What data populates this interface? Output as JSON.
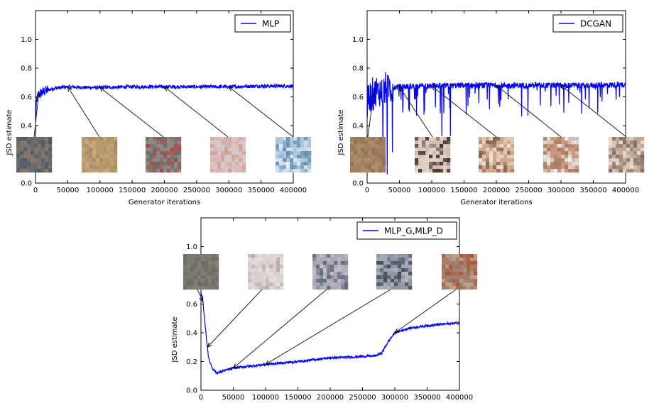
{
  "chart_data": [
    {
      "id": "mlp",
      "type": "line",
      "legend": "MLP",
      "legend_position": "top-right",
      "xlabel": "Generator iterations",
      "ylabel": "JSD estimate",
      "xlim": [
        0,
        400000
      ],
      "ylim": [
        0.0,
        1.2
      ],
      "xticks": [
        0,
        50000,
        100000,
        150000,
        200000,
        250000,
        300000,
        350000,
        400000
      ],
      "yticks": [
        0.0,
        0.2,
        0.4,
        0.6,
        0.8,
        1.0
      ],
      "xtick_labels": [
        "0",
        "50000",
        "100000",
        "150000",
        "200000",
        "250000",
        "300000",
        "350000",
        "400000"
      ],
      "ytick_labels": [
        "0.0",
        "0.2",
        "0.4",
        "0.6",
        "0.8",
        "1.0"
      ],
      "color": "#0000ff",
      "noise": 0.012,
      "spikes": false,
      "series": [
        {
          "name": "MLP",
          "x": [
            0,
            2000,
            5000,
            10000,
            20000,
            30000,
            50000,
            80000,
            100000,
            150000,
            200000,
            250000,
            300000,
            350000,
            400000
          ],
          "y": [
            0.45,
            0.58,
            0.62,
            0.63,
            0.65,
            0.66,
            0.67,
            0.665,
            0.665,
            0.67,
            0.67,
            0.67,
            0.67,
            0.675,
            0.675
          ]
        }
      ],
      "thumbnails": [
        {
          "at_x": 5000,
          "tone": [
            "#6a6a6a",
            "#8a7a6a",
            "#4a5a6a"
          ]
        },
        {
          "at_x": 50000,
          "tone": [
            "#b89a70",
            "#a88a60",
            "#c8aa80"
          ]
        },
        {
          "at_x": 100000,
          "tone": [
            "#8a8a8a",
            "#b04040",
            "#6a6a5a"
          ]
        },
        {
          "at_x": 200000,
          "tone": [
            "#d8c8c8",
            "#e0b0c0",
            "#c8a088"
          ]
        },
        {
          "at_x": 300000,
          "tone": [
            "#a8c8e0",
            "#e8f0f8",
            "#6888a8"
          ]
        }
      ]
    },
    {
      "id": "dcgan",
      "type": "line",
      "legend": "DCGAN",
      "legend_position": "top-right",
      "xlabel": "Generator iterations",
      "ylabel": "JSD estimate",
      "xlim": [
        0,
        400000
      ],
      "ylim": [
        0.0,
        1.2
      ],
      "xticks": [
        0,
        50000,
        100000,
        150000,
        200000,
        250000,
        300000,
        350000,
        400000
      ],
      "yticks": [
        0.0,
        0.2,
        0.4,
        0.6,
        0.8,
        1.0
      ],
      "xtick_labels": [
        "0",
        "50000",
        "100000",
        "150000",
        "200000",
        "250000",
        "300000",
        "350000",
        "400000"
      ],
      "ytick_labels": [
        "0.0",
        "0.2",
        "0.4",
        "0.6",
        "0.8",
        "1.0"
      ],
      "color": "#0000ff",
      "noise": 0.02,
      "spikes": true,
      "series": [
        {
          "name": "DCGAN",
          "x": [
            0,
            5000,
            10000,
            20000,
            30000,
            50000,
            80000,
            100000,
            150000,
            200000,
            250000,
            300000,
            350000,
            400000
          ],
          "y": [
            0.55,
            0.6,
            0.62,
            0.64,
            0.66,
            0.67,
            0.675,
            0.675,
            0.68,
            0.68,
            0.68,
            0.68,
            0.68,
            0.685
          ]
        }
      ],
      "thumbnails": [
        {
          "at_x": 10000,
          "tone": [
            "#a08060",
            "#907050",
            "#b09070"
          ]
        },
        {
          "at_x": 50000,
          "tone": [
            "#e0d0c8",
            "#402820",
            "#c8b8a8"
          ]
        },
        {
          "at_x": 100000,
          "tone": [
            "#d0a888",
            "#f0e8e0",
            "#806050"
          ]
        },
        {
          "at_x": 200000,
          "tone": [
            "#c89880",
            "#f0f0f0",
            "#a07860"
          ]
        },
        {
          "at_x": 300000,
          "tone": [
            "#c0a898",
            "#e8e0d8",
            "#806858"
          ]
        }
      ]
    },
    {
      "id": "mlpg_mlpd",
      "type": "line",
      "legend": "MLP_G,MLP_D",
      "legend_position": "top-right",
      "xlabel": "",
      "ylabel": "JSD estimate",
      "xlim": [
        0,
        400000
      ],
      "ylim": [
        0.0,
        1.2
      ],
      "xticks": [
        0,
        50000,
        100000,
        150000,
        200000,
        250000,
        300000,
        350000,
        400000
      ],
      "yticks": [
        0.0,
        0.2,
        0.4,
        0.6,
        0.8,
        1.0
      ],
      "xtick_labels": [
        "0",
        "50000",
        "100000",
        "150000",
        "200000",
        "250000",
        "300000",
        "350000",
        "400000"
      ],
      "ytick_labels": [
        "0.0",
        "0.2",
        "0.4",
        "0.6",
        "0.8",
        "1.0"
      ],
      "color": "#0000ff",
      "noise": 0.008,
      "spikes": false,
      "series": [
        {
          "name": "MLP_G,MLP_D",
          "x": [
            0,
            3000,
            8000,
            12000,
            18000,
            25000,
            35000,
            50000,
            80000,
            100000,
            150000,
            200000,
            250000,
            270000,
            280000,
            290000,
            300000,
            320000,
            350000,
            400000
          ],
          "y": [
            0.68,
            0.62,
            0.38,
            0.22,
            0.15,
            0.12,
            0.135,
            0.155,
            0.17,
            0.18,
            0.2,
            0.225,
            0.235,
            0.24,
            0.26,
            0.34,
            0.4,
            0.43,
            0.45,
            0.47
          ]
        }
      ],
      "thumbnails": [
        {
          "at_x": 3000,
          "tone": [
            "#7a7a70",
            "#8a8070",
            "#6a6a68"
          ]
        },
        {
          "at_x": 10000,
          "tone": [
            "#d8d0d0",
            "#b8a8a8",
            "#e8e0e0"
          ]
        },
        {
          "at_x": 50000,
          "tone": [
            "#a8a8b8",
            "#606878",
            "#c8c0c0"
          ]
        },
        {
          "at_x": 100000,
          "tone": [
            "#9098a8",
            "#404850",
            "#b8b8c0"
          ]
        },
        {
          "at_x": 300000,
          "tone": [
            "#a08070",
            "#b05030",
            "#c8a890"
          ]
        }
      ]
    }
  ]
}
